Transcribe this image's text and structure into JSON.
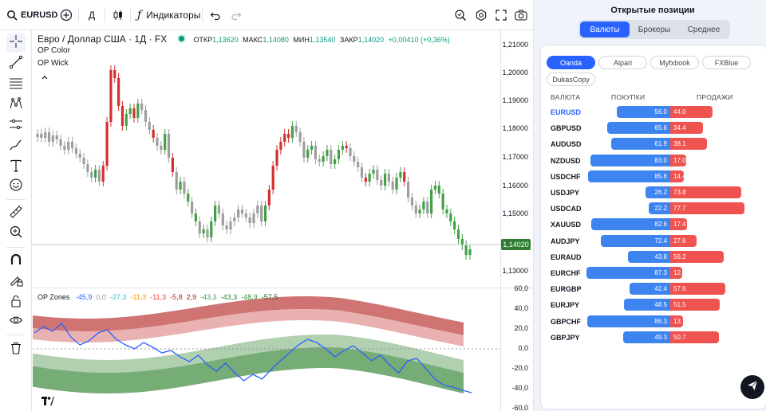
{
  "toolbar": {
    "symbol": "EURUSD",
    "interval": "Д",
    "indicators_label": "Индикаторы"
  },
  "chart": {
    "title": "Евро / Доллар США · 1Д · FX",
    "ohlc": {
      "open_label": "ОТКР",
      "open": "1,13620",
      "high_label": "МАКС",
      "high": "1,14080",
      "low_label": "МИН",
      "low": "1,13540",
      "close_label": "ЗАКР",
      "close": "1,14020",
      "change": "+0,00410 (+0,36%)"
    },
    "indicator_legends": [
      "OP Color",
      "OP Wick"
    ],
    "price_ticks": [
      "1,21000",
      "1,20000",
      "1,19000",
      "1,18000",
      "1,17000",
      "1,16000",
      "1,15000",
      "1,13000"
    ],
    "last_price": "1,14020",
    "zones_label": "OP Zones",
    "zones_values": [
      {
        "v": "-45,9",
        "c": "#2962ff"
      },
      {
        "v": "0,0",
        "c": "#9598a1"
      },
      {
        "v": "-27,3",
        "c": "#26c6da"
      },
      {
        "v": "-11,3",
        "c": "#ff9800"
      },
      {
        "v": "-11,3",
        "c": "#f23645"
      },
      {
        "v": "-5,8",
        "c": "#c62828"
      },
      {
        "v": "2,9",
        "c": "#b71c1c"
      },
      {
        "v": "-43,3",
        "c": "#43a047"
      },
      {
        "v": "-43,3",
        "c": "#2e7d32"
      },
      {
        "v": "-48,9",
        "c": "#388e3c"
      },
      {
        "v": "-57,5",
        "c": "#1b5e20"
      }
    ],
    "osc_ticks": [
      "60,0",
      "40,0",
      "20,0",
      "0,0",
      "-20,0",
      "-40,0",
      "-60,0"
    ]
  },
  "panel": {
    "title": "Открытые позиции",
    "tabs": [
      "Валюты",
      "Брокеры",
      "Среднее"
    ],
    "active_tab": 0,
    "brokers": [
      "Oanda",
      "Alpari",
      "Myfxbook",
      "FXBlue",
      "DukasCopy"
    ],
    "active_broker": 0,
    "headers": {
      "currency": "ВАЛЮТА",
      "buy": "ПОКУПКИ",
      "sell": "ПРОДАЖИ"
    },
    "rows": [
      {
        "pair": "EURUSD",
        "buy": "56.0",
        "sell": "44.0"
      },
      {
        "pair": "GBPUSD",
        "buy": "65.6",
        "sell": "34.4"
      },
      {
        "pair": "AUDUSD",
        "buy": "61.9",
        "sell": "38.1"
      },
      {
        "pair": "NZDUSD",
        "buy": "83.0",
        "sell": "17.0"
      },
      {
        "pair": "USDCHF",
        "buy": "85.6",
        "sell": "14.4"
      },
      {
        "pair": "USDJPY",
        "buy": "26.2",
        "sell": "73.8"
      },
      {
        "pair": "USDCAD",
        "buy": "22.2",
        "sell": "77.7"
      },
      {
        "pair": "XAUUSD",
        "buy": "82.6",
        "sell": "17.4"
      },
      {
        "pair": "AUDJPY",
        "buy": "72.4",
        "sell": "27.6"
      },
      {
        "pair": "EURAUD",
        "buy": "43.8",
        "sell": "56.2"
      },
      {
        "pair": "EURCHF",
        "buy": "87.3",
        "sell": "12.7"
      },
      {
        "pair": "EURGBP",
        "buy": "42.4",
        "sell": "57.6"
      },
      {
        "pair": "EURJPY",
        "buy": "48.5",
        "sell": "51.5"
      },
      {
        "pair": "GBPCHF",
        "buy": "86.3",
        "sell": "13.7"
      },
      {
        "pair": "GBPJPY",
        "buy": "49.3",
        "sell": "50.7"
      }
    ]
  },
  "colors": {
    "accent": "#2962ff",
    "buy": "#3d84f1",
    "sell": "#ef5350",
    "candle_up": "#43a047",
    "candle_down": "#d32f2f",
    "candle_neutral": "#9e9e9e"
  },
  "icons": {
    "left_toolbar": [
      "crosshair-icon",
      "trend-line-icon",
      "fib-icon",
      "pattern-icon",
      "prediction-icon",
      "brush-icon",
      "text-icon",
      "emoji-icon",
      "ruler-icon",
      "zoom-icon",
      "magnet-icon",
      "lock-drawing-icon",
      "lock-icon",
      "eye-icon",
      "trash-icon"
    ]
  }
}
